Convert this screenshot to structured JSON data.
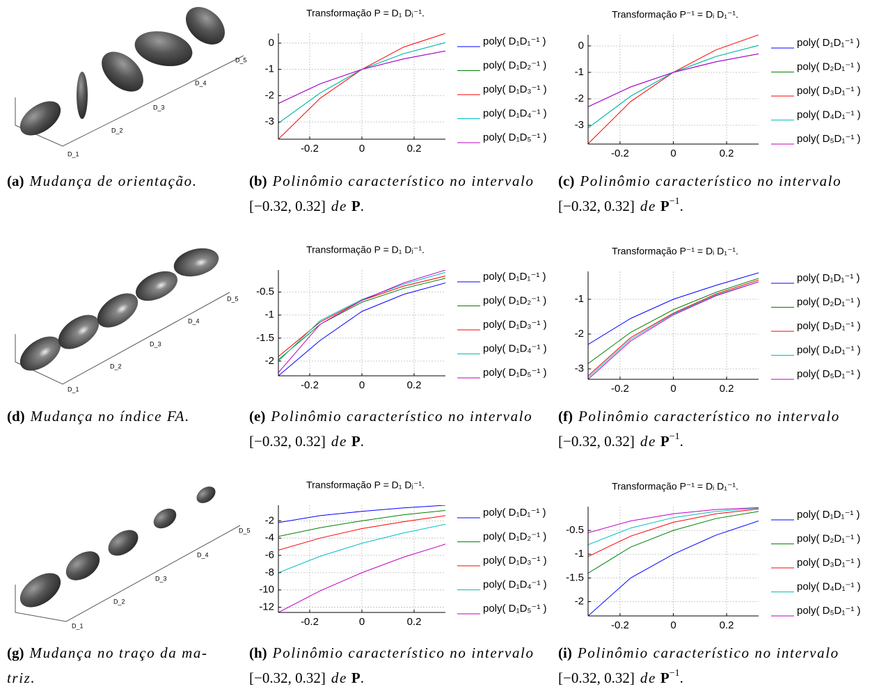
{
  "chart_data": [
    {
      "type": "line",
      "title": "Transformação P = D₁ Dⱼ⁻¹.",
      "x": [
        -0.32,
        -0.16,
        0,
        0.16,
        0.32
      ],
      "xlim": [
        -0.32,
        0.32
      ],
      "xticks": [
        -0.2,
        0,
        0.2
      ],
      "ylim": [
        -3.66,
        0.37
      ],
      "yticks": [
        -3,
        -2,
        -1,
        0
      ],
      "grid": true,
      "series": [
        {
          "name": "poly( D₁D₁⁻¹ )",
          "color": "#0000ff",
          "values": [
            -2.3,
            -1.55,
            -1,
            -0.6,
            -0.3
          ]
        },
        {
          "name": "poly( D₁D₂⁻¹ )",
          "color": "#008000",
          "values": [
            -3.05,
            -1.9,
            -1,
            -0.4,
            0.02
          ]
        },
        {
          "name": "poly( D₁D₃⁻¹ )",
          "color": "#ff0000",
          "values": [
            -3.66,
            -2.1,
            -1,
            -0.15,
            0.37
          ]
        },
        {
          "name": "poly( D₁D₄⁻¹ )",
          "color": "#00bfbf",
          "values": [
            -3.05,
            -1.9,
            -1,
            -0.4,
            0.02
          ]
        },
        {
          "name": "poly( D₁D₅⁻¹ )",
          "color": "#bf00bf",
          "values": [
            -2.3,
            -1.55,
            -1,
            -0.6,
            -0.3
          ]
        }
      ]
    },
    {
      "type": "line",
      "title": "Transformação P⁻¹ = Dᵢ D₁⁻¹.",
      "x": [
        -0.32,
        -0.16,
        0,
        0.16,
        0.32
      ],
      "xlim": [
        -0.32,
        0.32
      ],
      "xticks": [
        -0.2,
        0,
        0.2
      ],
      "ylim": [
        -3.71,
        0.42
      ],
      "yticks": [
        -3,
        -2,
        -1,
        0
      ],
      "grid": true,
      "series": [
        {
          "name": "poly( D₁D₁⁻¹ )",
          "color": "#0000ff",
          "values": [
            -2.3,
            -1.55,
            -1,
            -0.6,
            -0.3
          ]
        },
        {
          "name": "poly( D₂D₁⁻¹ )",
          "color": "#008000",
          "values": [
            -3.1,
            -1.9,
            -1,
            -0.4,
            0.02
          ]
        },
        {
          "name": "poly( D₃D₁⁻¹ )",
          "color": "#ff0000",
          "values": [
            -3.7,
            -2.1,
            -1,
            -0.15,
            0.42
          ]
        },
        {
          "name": "poly( D₄D₁⁻¹ )",
          "color": "#00bfbf",
          "values": [
            -3.1,
            -1.9,
            -1,
            -0.4,
            0.02
          ]
        },
        {
          "name": "poly( D₅D₁⁻¹ )",
          "color": "#bf00bf",
          "values": [
            -2.3,
            -1.55,
            -1,
            -0.6,
            -0.3
          ]
        }
      ]
    },
    {
      "type": "line",
      "title": "Transformação P = D₁ Dⱼ⁻¹.",
      "x": [
        -0.32,
        -0.16,
        0,
        0.16,
        0.32
      ],
      "xlim": [
        -0.32,
        0.32
      ],
      "xticks": [
        -0.2,
        0,
        0.2
      ],
      "ylim": [
        -2.32,
        -0.02
      ],
      "yticks": [
        -2,
        -1.5,
        -1,
        -0.5
      ],
      "grid": true,
      "series": [
        {
          "name": "poly( D₁D₁⁻¹ )",
          "color": "#0000ff",
          "values": [
            -2.32,
            -1.55,
            -0.92,
            -0.55,
            -0.3
          ]
        },
        {
          "name": "poly( D₁D₂⁻¹ )",
          "color": "#008000",
          "values": [
            -1.97,
            -1.2,
            -0.72,
            -0.42,
            -0.2
          ]
        },
        {
          "name": "poly( D₁D₃⁻¹ )",
          "color": "#ff0000",
          "values": [
            -1.9,
            -1.15,
            -0.68,
            -0.37,
            -0.15
          ]
        },
        {
          "name": "poly( D₁D₄⁻¹ )",
          "color": "#00bfbf",
          "values": [
            -2.0,
            -1.12,
            -0.66,
            -0.33,
            -0.07
          ]
        },
        {
          "name": "poly( D₁D₅⁻¹ )",
          "color": "#bf00bf",
          "values": [
            -2.25,
            -1.2,
            -0.68,
            -0.3,
            -0.02
          ]
        }
      ]
    },
    {
      "type": "line",
      "title": "Transformação P⁻¹ = Dᵢ D₁⁻¹.",
      "x": [
        -0.32,
        -0.16,
        0,
        0.16,
        0.32
      ],
      "xlim": [
        -0.32,
        0.32
      ],
      "xticks": [
        -0.2,
        0,
        0.2
      ],
      "ylim": [
        -3.3,
        -0.2
      ],
      "yticks": [
        -3,
        -2,
        -1
      ],
      "grid": true,
      "series": [
        {
          "name": "poly( D₁D₁⁻¹ )",
          "color": "#0000ff",
          "values": [
            -2.3,
            -1.55,
            -1.0,
            -0.6,
            -0.24
          ]
        },
        {
          "name": "poly( D₂D₁⁻¹ )",
          "color": "#008000",
          "values": [
            -2.85,
            -1.95,
            -1.3,
            -0.8,
            -0.4
          ]
        },
        {
          "name": "poly( D₃D₁⁻¹ )",
          "color": "#ff0000",
          "values": [
            -3.2,
            -2.1,
            -1.4,
            -0.85,
            -0.45
          ]
        },
        {
          "name": "poly( D₄D₁⁻¹ )",
          "color": "#00bfbf",
          "values": [
            -3.25,
            -2.15,
            -1.42,
            -0.88,
            -0.5
          ]
        },
        {
          "name": "poly( D₅D₁⁻¹ )",
          "color": "#bf00bf",
          "values": [
            -3.3,
            -2.2,
            -1.45,
            -0.9,
            -0.5
          ]
        }
      ]
    },
    {
      "type": "line",
      "title": "Transformação P = D₁ Dⱼ⁻¹.",
      "x": [
        -0.32,
        -0.16,
        0,
        0.16,
        0.32
      ],
      "xlim": [
        -0.32,
        0.32
      ],
      "xticks": [
        -0.2,
        0,
        0.2
      ],
      "ylim": [
        -12.6,
        -0.2
      ],
      "yticks": [
        -12,
        -10,
        -8,
        -6,
        -4,
        -2
      ],
      "grid": true,
      "series": [
        {
          "name": "poly( D₁D₁⁻¹ )",
          "color": "#0000ff",
          "values": [
            -2.2,
            -1.4,
            -0.9,
            -0.5,
            -0.2
          ]
        },
        {
          "name": "poly( D₁D₂⁻¹ )",
          "color": "#008000",
          "values": [
            -3.8,
            -2.8,
            -2,
            -1.3,
            -0.8
          ]
        },
        {
          "name": "poly( D₁D₃⁻¹ )",
          "color": "#ff0000",
          "values": [
            -5.4,
            -4.0,
            -2.9,
            -2.1,
            -1.4
          ]
        },
        {
          "name": "poly( D₁D₄⁻¹ )",
          "color": "#00bfbf",
          "values": [
            -8,
            -6.1,
            -4.6,
            -3.4,
            -2.4
          ]
        },
        {
          "name": "poly( D₁D₅⁻¹ )",
          "color": "#bf00bf",
          "values": [
            -12.6,
            -10.1,
            -8,
            -6.2,
            -4.7
          ]
        }
      ]
    },
    {
      "type": "line",
      "title": "Transformação P⁻¹ = Dᵢ D₁⁻¹.",
      "x": [
        -0.32,
        -0.16,
        0,
        0.16,
        0.32
      ],
      "xlim": [
        -0.32,
        0.32
      ],
      "xticks": [
        -0.2,
        0,
        0.2
      ],
      "ylim": [
        -2.3,
        0
      ],
      "yticks": [
        -2,
        -1.5,
        -1,
        -0.5
      ],
      "grid": true,
      "series": [
        {
          "name": "poly( D₁D₁⁻¹ )",
          "color": "#0000ff",
          "values": [
            -2.3,
            -1.5,
            -1.0,
            -0.6,
            -0.3
          ]
        },
        {
          "name": "poly( D₂D₁⁻¹ )",
          "color": "#008000",
          "values": [
            -1.4,
            -0.85,
            -0.5,
            -0.25,
            -0.1
          ]
        },
        {
          "name": "poly( D₃D₁⁻¹ )",
          "color": "#ff0000",
          "values": [
            -1.05,
            -0.62,
            -0.33,
            -0.15,
            -0.05
          ]
        },
        {
          "name": "poly( D₄D₁⁻¹ )",
          "color": "#00bfbf",
          "values": [
            -0.8,
            -0.45,
            -0.23,
            -0.1,
            -0.03
          ]
        },
        {
          "name": "poly( D₅D₁⁻¹ )",
          "color": "#bf00bf",
          "values": [
            -0.55,
            -0.3,
            -0.15,
            -0.06,
            -0.02
          ]
        }
      ]
    }
  ],
  "ellipsoid_labels": [
    "D_1",
    "D_2",
    "D_3",
    "D_4",
    "D_5"
  ],
  "captions": [
    {
      "tag": "(a)",
      "lines": [
        "Mudança de orientação."
      ]
    },
    {
      "tag": "(b)",
      "lines": [
        "Polinômio característico no intervalo"
      ],
      "interval": "[−0.32, 0.32]",
      "de": "de",
      "symbol": "P",
      "end": "."
    },
    {
      "tag": "(c)",
      "lines": [
        "Polinômio característico no intervalo"
      ],
      "interval": "[−0.32, 0.32]",
      "de": "de",
      "symbol": "P",
      "exponent": "−1",
      "end": "."
    },
    {
      "tag": "(d)",
      "lines": [
        "Mudança no índice FA."
      ]
    },
    {
      "tag": "(e)",
      "lines": [
        "Polinômio característico no intervalo"
      ],
      "interval": "[−0.32, 0.32]",
      "de": "de",
      "symbol": "P",
      "end": "."
    },
    {
      "tag": "(f)",
      "lines": [
        "Polinômio característico no intervalo"
      ],
      "interval": "[−0.32, 0.32]",
      "de": "de",
      "symbol": "P",
      "exponent": "−1",
      "end": "."
    },
    {
      "tag": "(g)",
      "lines": [
        "Mudança no traço da ma-",
        "triz."
      ]
    },
    {
      "tag": "(h)",
      "lines": [
        "Polinômio característico no intervalo"
      ],
      "interval": "[−0.32, 0.32]",
      "de": "de",
      "symbol": "P",
      "end": "."
    },
    {
      "tag": "(i)",
      "lines": [
        "Polinômio característico no intervalo"
      ],
      "interval": "[−0.32, 0.32]",
      "de": "de",
      "symbol": "P",
      "exponent": "−1",
      "end": "."
    }
  ]
}
